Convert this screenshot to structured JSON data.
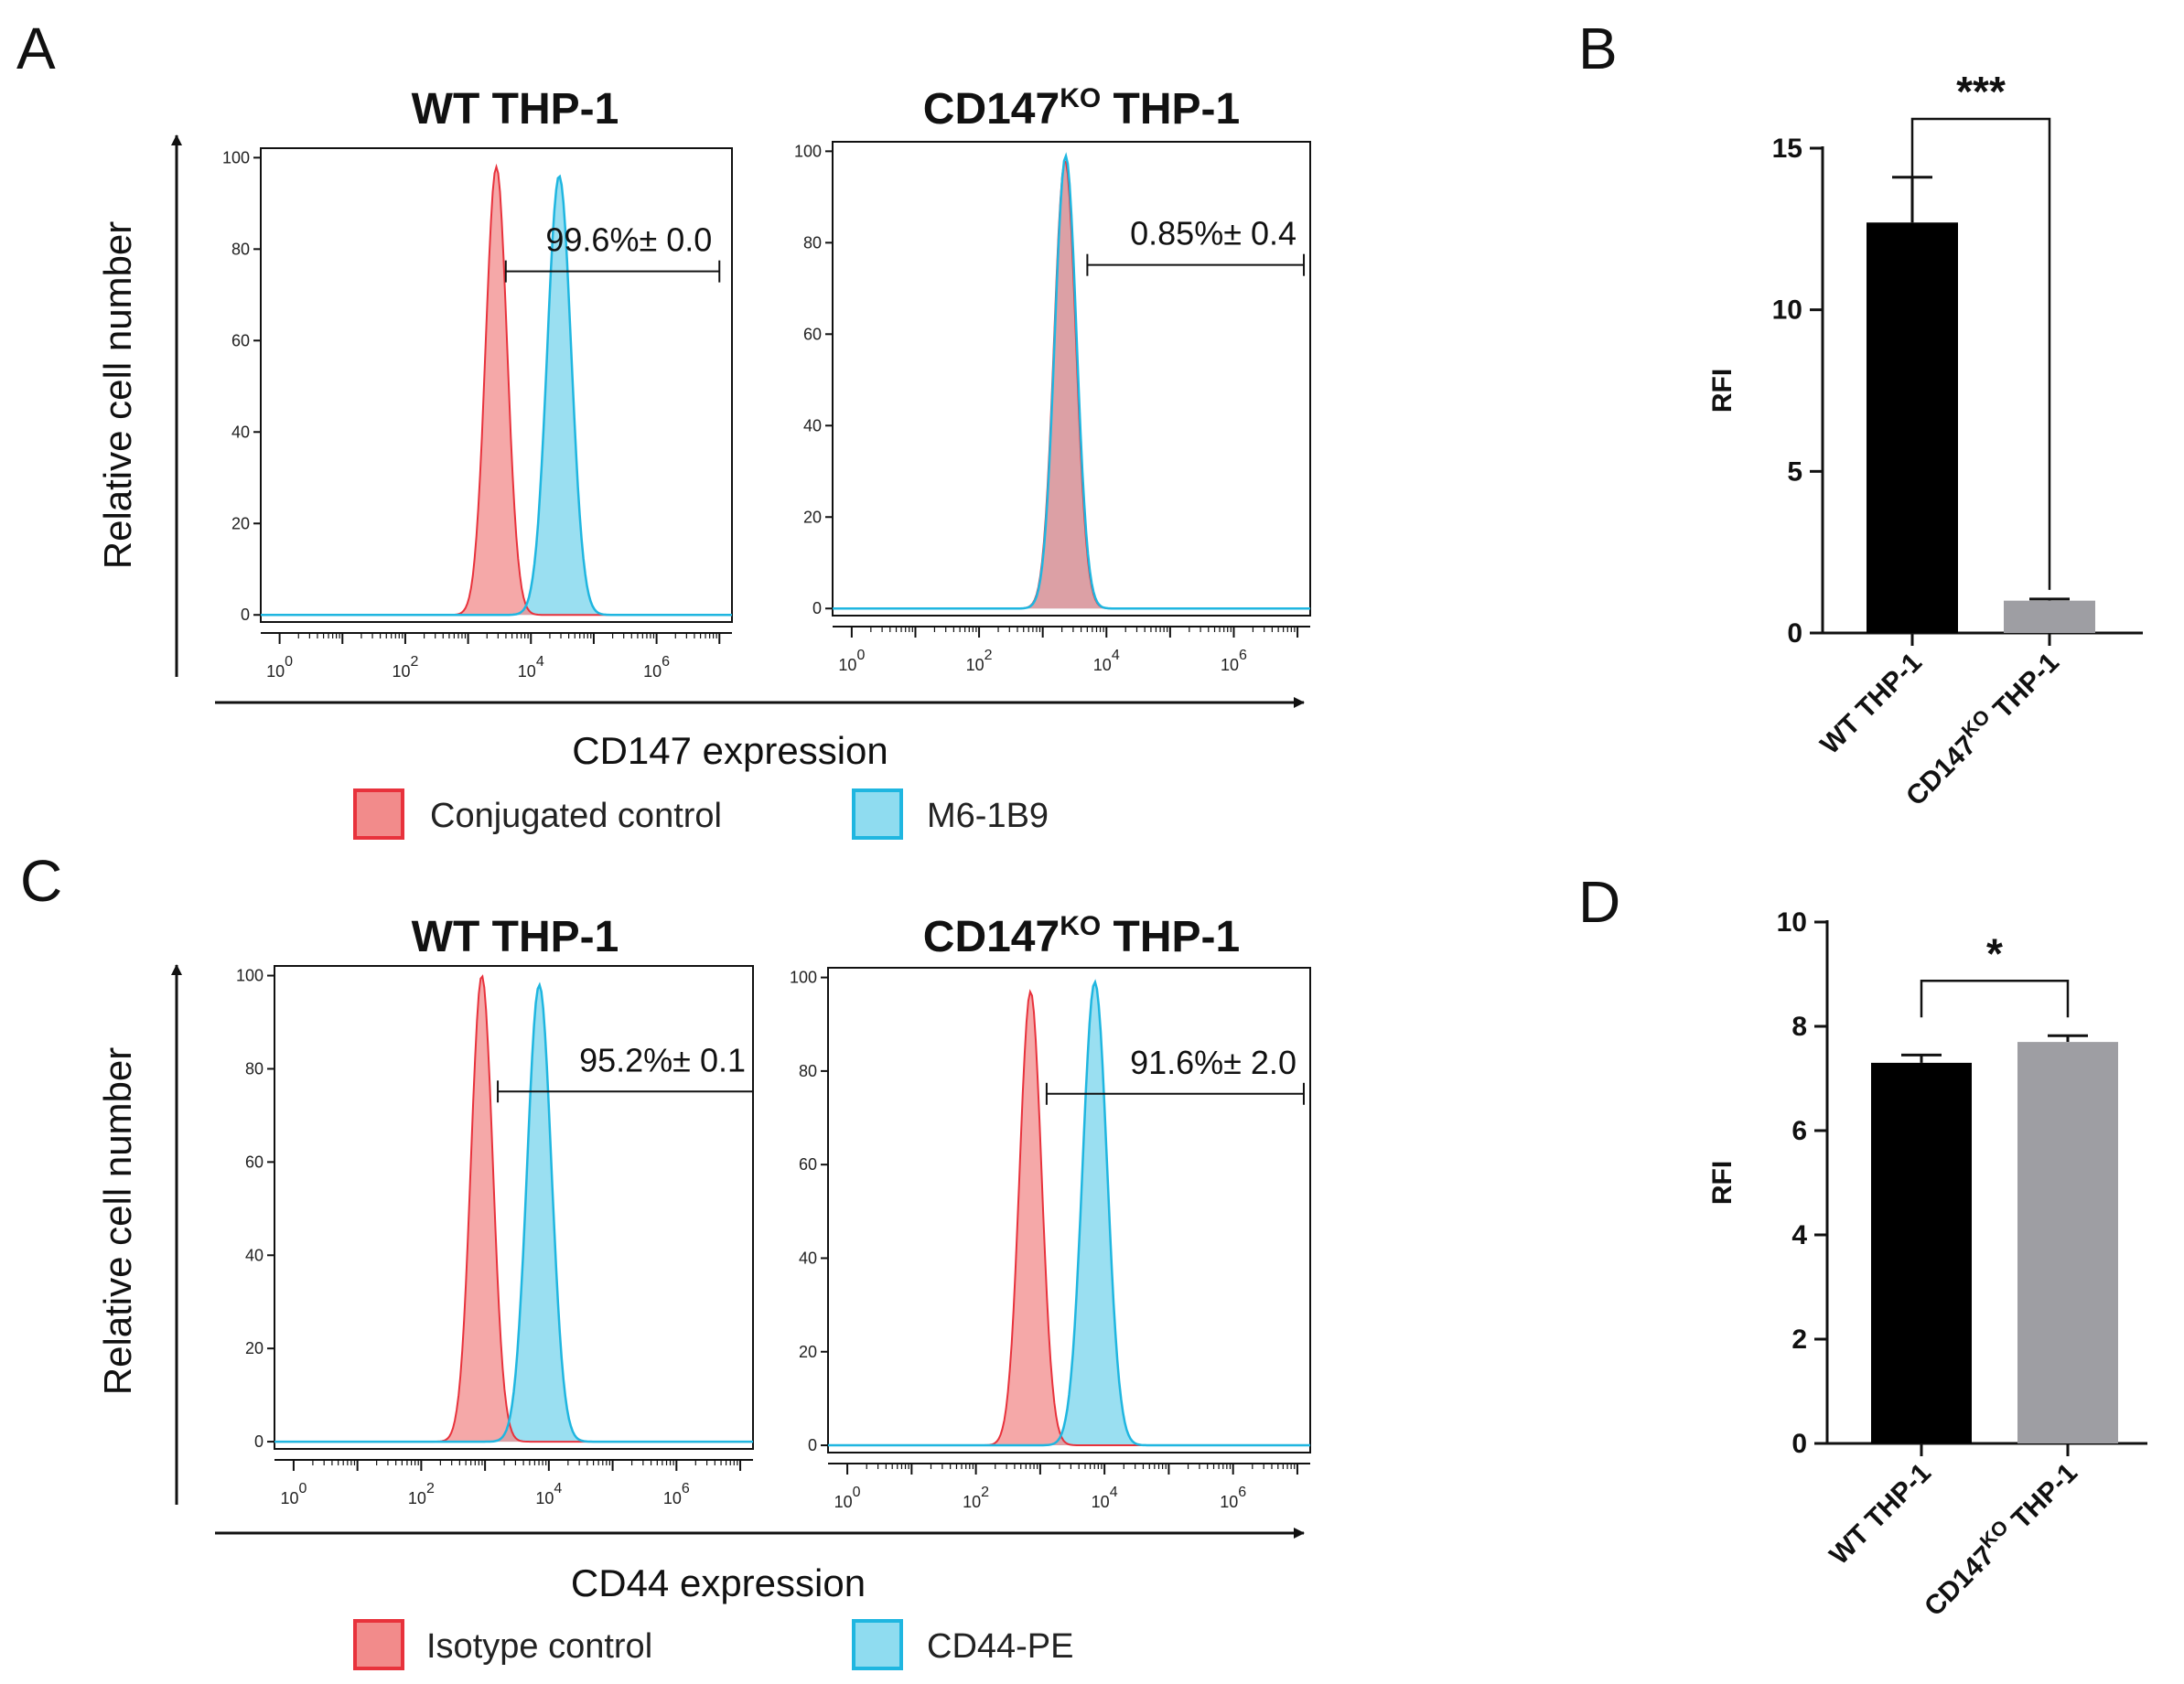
{
  "panel_letters": {
    "a": "A",
    "b": "B",
    "c": "C",
    "d": "D"
  },
  "titles": {
    "wt": "WT THP-1",
    "ko_main": "CD147",
    "ko_sup": "KO",
    "ko_tail": " THP-1"
  },
  "axis": {
    "y_label": "Relative cell number",
    "x_label_top": "CD147 expression",
    "x_label_bottom": "CD44 expression",
    "y_ticks": [
      "0",
      "20",
      "40",
      "60",
      "80",
      "100"
    ],
    "x_tick_base": "10",
    "x_tick_exps": [
      "0",
      "2",
      "4",
      "6"
    ]
  },
  "legend_top": {
    "control": "Conjugated control",
    "stain": "M6-1B9"
  },
  "legend_bottom": {
    "control": "Isotype control",
    "stain": "CD44-PE"
  },
  "colors": {
    "control_fill": "#f28b8b",
    "control_line": "#e8323c",
    "stain_fill": "#8fdcf0",
    "stain_line": "#1fb6e0",
    "bar_wt": "#000000",
    "bar_ko": "#9e9ea3"
  },
  "chart_data": [
    {
      "type": "area",
      "panel": "A",
      "title": "WT THP-1",
      "xlabel": "CD147 expression",
      "ylabel": "Relative cell number",
      "x_scale": "log10",
      "xlim_log10": [
        -0.3,
        7.2
      ],
      "ylim": [
        0,
        100
      ],
      "series": [
        {
          "name": "Conjugated control",
          "center_log10": 3.45,
          "width_log10": 0.17,
          "peak": 98
        },
        {
          "name": "M6-1B9",
          "center_log10": 4.45,
          "width_log10": 0.19,
          "peak": 96
        }
      ],
      "gate": {
        "label": "99.6%± 0.0",
        "from_log10": 3.6,
        "to_log10": 7.0
      }
    },
    {
      "type": "area",
      "panel": "A",
      "title": "CD147KO THP-1",
      "xlabel": "CD147 expression",
      "ylabel": "Relative cell number",
      "x_scale": "log10",
      "xlim_log10": [
        -0.3,
        7.2
      ],
      "ylim": [
        0,
        100
      ],
      "series": [
        {
          "name": "Conjugated control",
          "center_log10": 3.35,
          "width_log10": 0.17,
          "peak": 98
        },
        {
          "name": "M6-1B9",
          "center_log10": 3.36,
          "width_log10": 0.17,
          "peak": 99
        }
      ],
      "gate": {
        "label": "0.85%± 0.4",
        "from_log10": 3.7,
        "to_log10": 7.1
      }
    },
    {
      "type": "area",
      "panel": "C",
      "title": "WT THP-1",
      "xlabel": "CD44 expression",
      "ylabel": "Relative cell number",
      "x_scale": "log10",
      "xlim_log10": [
        -0.3,
        7.2
      ],
      "ylim": [
        0,
        100
      ],
      "series": [
        {
          "name": "Isotype control",
          "center_log10": 2.95,
          "width_log10": 0.17,
          "peak": 100
        },
        {
          "name": "CD44-PE",
          "center_log10": 3.85,
          "width_log10": 0.19,
          "peak": 98
        }
      ],
      "gate": {
        "label": "95.2%± 0.1",
        "from_log10": 3.2,
        "to_log10": 7.2
      }
    },
    {
      "type": "area",
      "panel": "C",
      "title": "CD147KO THP-1",
      "xlabel": "CD44 expression",
      "ylabel": "Relative cell number",
      "x_scale": "log10",
      "xlim_log10": [
        -0.3,
        7.2
      ],
      "ylim": [
        0,
        100
      ],
      "series": [
        {
          "name": "Isotype control",
          "center_log10": 2.85,
          "width_log10": 0.17,
          "peak": 97
        },
        {
          "name": "CD44-PE",
          "center_log10": 3.85,
          "width_log10": 0.19,
          "peak": 99
        }
      ],
      "gate": {
        "label": "91.6%± 2.0",
        "from_log10": 3.1,
        "to_log10": 7.1
      }
    },
    {
      "type": "bar",
      "panel": "B",
      "title": "",
      "xlabel": "",
      "ylabel": "RFI",
      "categories": [
        "WT THP-1",
        "CD147KO THP-1"
      ],
      "values": [
        12.7,
        1.0
      ],
      "errors": [
        1.4,
        0.05
      ],
      "ylim": [
        0,
        15
      ],
      "yticks": [
        0,
        5,
        10,
        15
      ],
      "significance": "***"
    },
    {
      "type": "bar",
      "panel": "D",
      "title": "",
      "xlabel": "",
      "ylabel": "RFI",
      "categories": [
        "WT THP-1",
        "CD147KO THP-1"
      ],
      "values": [
        7.3,
        7.7
      ],
      "errors": [
        0.15,
        0.12
      ],
      "ylim": [
        0,
        10
      ],
      "yticks": [
        0,
        2,
        4,
        6,
        8,
        10
      ],
      "significance": "*"
    }
  ]
}
